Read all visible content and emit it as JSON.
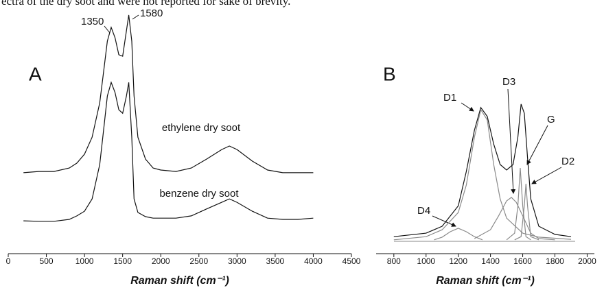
{
  "page_text": "ectra of the dry soot and were not reported for sake of brevity.",
  "chart_data": [
    {
      "type": "line",
      "xlabel": "Raman shift (cm⁻¹)",
      "annotations": [
        "A",
        "1350",
        "1580"
      ],
      "xlim": [
        0,
        4500
      ],
      "xticks": [
        0,
        500,
        1000,
        1500,
        2000,
        2500,
        3000,
        3500,
        4000,
        4500
      ],
      "ylim": [
        0,
        100
      ],
      "series": [
        {
          "name": "ethylene dry soot",
          "color": "#111111",
          "x": [
            200,
            400,
            600,
            800,
            900,
            1000,
            1100,
            1200,
            1250,
            1300,
            1350,
            1400,
            1450,
            1500,
            1550,
            1580,
            1620,
            1650,
            1700,
            1800,
            1900,
            2000,
            2200,
            2400,
            2600,
            2800,
            2900,
            3000,
            3200,
            3400,
            3600,
            3800,
            4000
          ],
          "values": [
            32.8,
            33.3,
            33.3,
            34.7,
            36.7,
            40.3,
            47.2,
            61.1,
            73.6,
            86.1,
            91.7,
            87.5,
            80.6,
            80.0,
            90.3,
            96.7,
            86.1,
            63.9,
            47.2,
            38.3,
            34.7,
            33.9,
            33.3,
            34.7,
            38.3,
            42.2,
            43.6,
            42.2,
            37.5,
            33.9,
            32.8,
            32.8,
            32.8
          ]
        },
        {
          "name": "benzene dry soot",
          "color": "#111111",
          "x": [
            200,
            400,
            600,
            800,
            900,
            1000,
            1100,
            1200,
            1250,
            1300,
            1350,
            1400,
            1450,
            1500,
            1550,
            1580,
            1620,
            1650,
            1700,
            1800,
            1900,
            2000,
            2200,
            2400,
            2600,
            2800,
            2900,
            3000,
            3200,
            3400,
            3600,
            3800,
            4000
          ],
          "values": [
            13.3,
            13.1,
            13.1,
            13.9,
            15.3,
            17.2,
            22.2,
            36.1,
            50.0,
            63.9,
            69.4,
            65.3,
            58.3,
            56.9,
            63.9,
            69.4,
            47.2,
            22.2,
            16.7,
            15.0,
            14.4,
            14.4,
            14.4,
            15.3,
            18.1,
            20.8,
            22.2,
            20.8,
            17.2,
            14.4,
            13.9,
            13.9,
            14.4
          ]
        }
      ]
    },
    {
      "type": "line",
      "xlabel": "Raman shift (cm⁻¹)",
      "annotations": [
        "B"
      ],
      "xlim": [
        690,
        2045
      ],
      "xticks": [
        800,
        1000,
        1200,
        1400,
        1600,
        1800,
        2000
      ],
      "ylim": [
        0,
        100
      ],
      "series": [
        {
          "color": "#111111",
          "x": [
            800,
            1000,
            1100,
            1200,
            1250,
            1300,
            1340,
            1380,
            1420,
            1460,
            1500,
            1540,
            1570,
            1590,
            1610,
            1630,
            1650,
            1700,
            1800,
            1900
          ],
          "values": [
            6.9,
            8.3,
            11.1,
            19.4,
            33.3,
            50.0,
            59.2,
            55.6,
            44.4,
            36.1,
            33.9,
            36.1,
            47.2,
            60.6,
            56.9,
            38.9,
            22.2,
            11.1,
            7.8,
            6.9
          ]
        },
        {
          "name": "D1",
          "color": "#8a8a8a",
          "x": [
            800,
            1000,
            1100,
            1200,
            1250,
            1300,
            1340,
            1380,
            1420,
            1460,
            1500,
            1600,
            1700,
            1900
          ],
          "values": [
            5.6,
            6.9,
            9.7,
            16.7,
            27.8,
            47.2,
            58.3,
            54.2,
            36.1,
            22.2,
            14.4,
            8.3,
            6.7,
            5.8
          ]
        },
        {
          "name": "D2",
          "color": "#8a8a8a",
          "x": [
            1550,
            1590,
            1610,
            1620,
            1630,
            1650,
            1700
          ],
          "values": [
            5.6,
            6.9,
            19.4,
            28.3,
            19.4,
            6.9,
            5.6
          ]
        },
        {
          "name": "D3",
          "color": "#8a8a8a",
          "x": [
            1300,
            1400,
            1450,
            1500,
            1530,
            1560,
            1600,
            1650,
            1700,
            1800
          ],
          "values": [
            6.1,
            9.7,
            15.3,
            21.4,
            22.8,
            20.8,
            15.3,
            8.3,
            6.1,
            5.6
          ]
        },
        {
          "name": "D4",
          "color": "#8a8a8a",
          "x": [
            1050,
            1100,
            1150,
            1200,
            1250,
            1300,
            1350
          ],
          "values": [
            5.6,
            6.7,
            8.9,
            10.3,
            8.9,
            6.9,
            5.6
          ]
        },
        {
          "name": "G",
          "color": "#8a8a8a",
          "x": [
            1500,
            1550,
            1570,
            1585,
            1600,
            1620,
            1650
          ],
          "values": [
            5.6,
            8.3,
            19.4,
            34.7,
            19.4,
            6.9,
            5.6
          ]
        }
      ]
    }
  ]
}
